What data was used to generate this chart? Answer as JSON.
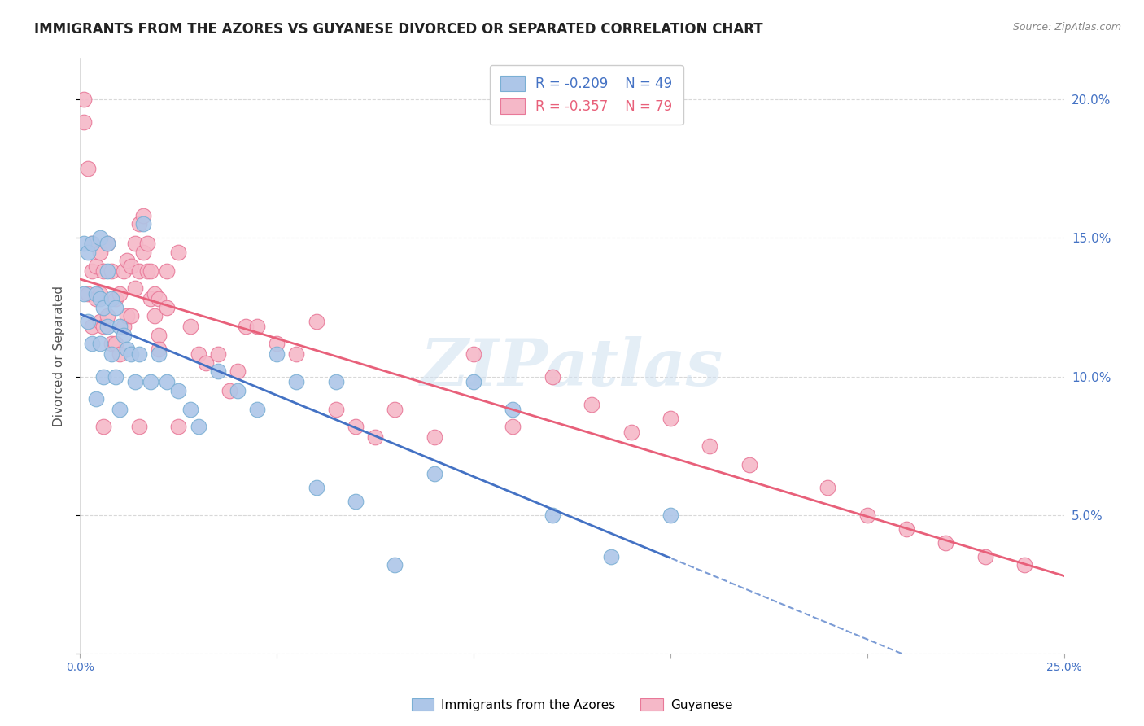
{
  "title": "IMMIGRANTS FROM THE AZORES VS GUYANESE DIVORCED OR SEPARATED CORRELATION CHART",
  "source": "Source: ZipAtlas.com",
  "ylabel": "Divorced or Separated",
  "watermark": "ZIPatlas",
  "xmin": 0.0,
  "xmax": 0.25,
  "ymin": 0.0,
  "ymax": 0.215,
  "yticks": [
    0.0,
    0.05,
    0.1,
    0.15,
    0.2
  ],
  "ytick_labels": [
    "",
    "5.0%",
    "10.0%",
    "15.0%",
    "20.0%"
  ],
  "xticks": [
    0.0,
    0.05,
    0.1,
    0.15,
    0.2,
    0.25
  ],
  "xtick_labels": [
    "0.0%",
    "",
    "",
    "",
    "",
    "25.0%"
  ],
  "series1_label": "Immigrants from the Azores",
  "series1_R": -0.209,
  "series1_N": 49,
  "series1_color": "#adc6e8",
  "series1_edge": "#7aafd4",
  "series2_label": "Guyanese",
  "series2_R": -0.357,
  "series2_N": 79,
  "series2_color": "#f5b8c8",
  "series2_edge": "#e87898",
  "trend1_color": "#4472c4",
  "trend2_color": "#e8607a",
  "background_color": "#ffffff",
  "grid_color": "#d8d8d8",
  "title_color": "#222222",
  "ylabel_color": "#555555",
  "tick_color": "#4472c4",
  "source_color": "#888888",
  "azores_x": [
    0.001,
    0.001,
    0.002,
    0.002,
    0.003,
    0.003,
    0.004,
    0.004,
    0.005,
    0.005,
    0.005,
    0.006,
    0.006,
    0.007,
    0.007,
    0.007,
    0.008,
    0.008,
    0.009,
    0.009,
    0.01,
    0.01,
    0.011,
    0.012,
    0.013,
    0.014,
    0.015,
    0.016,
    0.018,
    0.02,
    0.022,
    0.025,
    0.028,
    0.03,
    0.035,
    0.04,
    0.045,
    0.05,
    0.055,
    0.06,
    0.065,
    0.07,
    0.08,
    0.09,
    0.1,
    0.11,
    0.12,
    0.135,
    0.15
  ],
  "azores_y": [
    0.13,
    0.148,
    0.145,
    0.12,
    0.148,
    0.112,
    0.13,
    0.092,
    0.15,
    0.128,
    0.112,
    0.125,
    0.1,
    0.148,
    0.138,
    0.118,
    0.128,
    0.108,
    0.125,
    0.1,
    0.118,
    0.088,
    0.115,
    0.11,
    0.108,
    0.098,
    0.108,
    0.155,
    0.098,
    0.108,
    0.098,
    0.095,
    0.088,
    0.082,
    0.102,
    0.095,
    0.088,
    0.108,
    0.098,
    0.06,
    0.098,
    0.055,
    0.032,
    0.065,
    0.098,
    0.088,
    0.05,
    0.035,
    0.05
  ],
  "guyanese_x": [
    0.001,
    0.001,
    0.002,
    0.002,
    0.003,
    0.003,
    0.003,
    0.004,
    0.004,
    0.005,
    0.005,
    0.005,
    0.006,
    0.006,
    0.007,
    0.007,
    0.008,
    0.008,
    0.009,
    0.009,
    0.01,
    0.01,
    0.011,
    0.011,
    0.012,
    0.012,
    0.013,
    0.013,
    0.014,
    0.014,
    0.015,
    0.015,
    0.016,
    0.016,
    0.017,
    0.017,
    0.018,
    0.018,
    0.019,
    0.019,
    0.02,
    0.02,
    0.022,
    0.022,
    0.025,
    0.028,
    0.03,
    0.032,
    0.035,
    0.038,
    0.04,
    0.042,
    0.045,
    0.05,
    0.055,
    0.06,
    0.065,
    0.07,
    0.075,
    0.08,
    0.09,
    0.1,
    0.11,
    0.12,
    0.13,
    0.14,
    0.15,
    0.16,
    0.17,
    0.19,
    0.2,
    0.21,
    0.22,
    0.23,
    0.24,
    0.006,
    0.015,
    0.02,
    0.025
  ],
  "guyanese_y": [
    0.2,
    0.192,
    0.175,
    0.13,
    0.148,
    0.138,
    0.118,
    0.14,
    0.128,
    0.145,
    0.13,
    0.12,
    0.138,
    0.118,
    0.148,
    0.122,
    0.138,
    0.112,
    0.128,
    0.112,
    0.13,
    0.108,
    0.138,
    0.118,
    0.142,
    0.122,
    0.14,
    0.122,
    0.148,
    0.132,
    0.155,
    0.138,
    0.158,
    0.145,
    0.148,
    0.138,
    0.138,
    0.128,
    0.13,
    0.122,
    0.128,
    0.115,
    0.138,
    0.125,
    0.145,
    0.118,
    0.108,
    0.105,
    0.108,
    0.095,
    0.102,
    0.118,
    0.118,
    0.112,
    0.108,
    0.12,
    0.088,
    0.082,
    0.078,
    0.088,
    0.078,
    0.108,
    0.082,
    0.1,
    0.09,
    0.08,
    0.085,
    0.075,
    0.068,
    0.06,
    0.05,
    0.045,
    0.04,
    0.035,
    0.032,
    0.082,
    0.082,
    0.11,
    0.082
  ]
}
